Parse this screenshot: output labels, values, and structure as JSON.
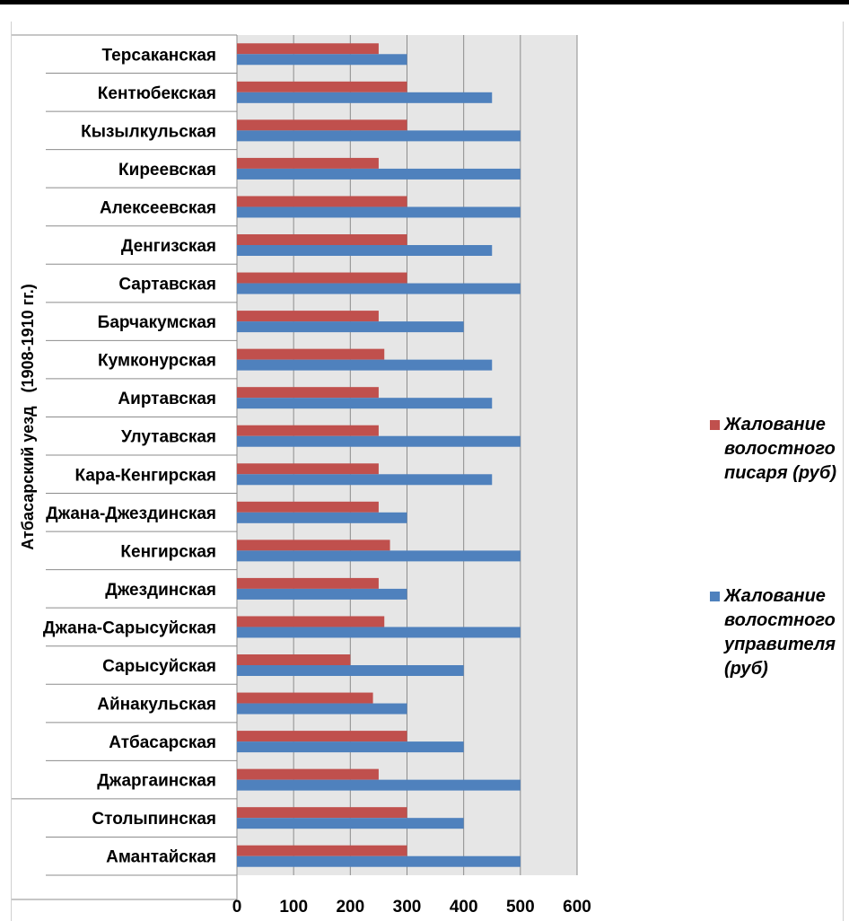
{
  "chart_data": {
    "type": "bar",
    "orientation": "horizontal",
    "group_label": "Атбасарский уезд   (1908-1910 гг.)",
    "categories": [
      "Терсаканская",
      "Кентюбекская",
      "Кызылкульская",
      "Киреевская",
      "Алексеевская",
      "Денгизская",
      "Сартавская",
      "Барчакумская",
      "Кумконурская",
      "Аиртавская",
      "Улутавская",
      "Кара-Кенгирская",
      "Джана-Джездинская",
      "Кенгирская",
      "Джездинская",
      "Джана-Сарысуйская",
      "Сарысуйская",
      "Айнакульская",
      "Атбасарская",
      "Джаргаинская",
      "Столыпинская",
      "Амантайская"
    ],
    "series": [
      {
        "name": "Жалование волостного писаря (руб)",
        "color": "#C0504D",
        "values": [
          250,
          300,
          300,
          250,
          300,
          300,
          300,
          250,
          260,
          250,
          250,
          250,
          250,
          270,
          250,
          260,
          200,
          240,
          300,
          250,
          300,
          300
        ]
      },
      {
        "name": "Жалование волостного управителя (руб)",
        "color": "#4F81BD",
        "values": [
          300,
          450,
          500,
          500,
          500,
          450,
          500,
          400,
          450,
          450,
          500,
          450,
          300,
          500,
          300,
          500,
          400,
          300,
          400,
          500,
          400,
          500
        ]
      }
    ],
    "xlim": [
      0,
      600
    ],
    "xticks": [
      0,
      100,
      200,
      300,
      400,
      500,
      600
    ],
    "grid": true,
    "plot_background": "#E6E6E6",
    "gridline_color": "#8C8C8C",
    "legend_position": "right"
  },
  "legend": {
    "series_1": "Жалование\nволостного\nписаря (руб)",
    "series_2": "Жалование\nволостного\nуправителя\n(руб)"
  }
}
